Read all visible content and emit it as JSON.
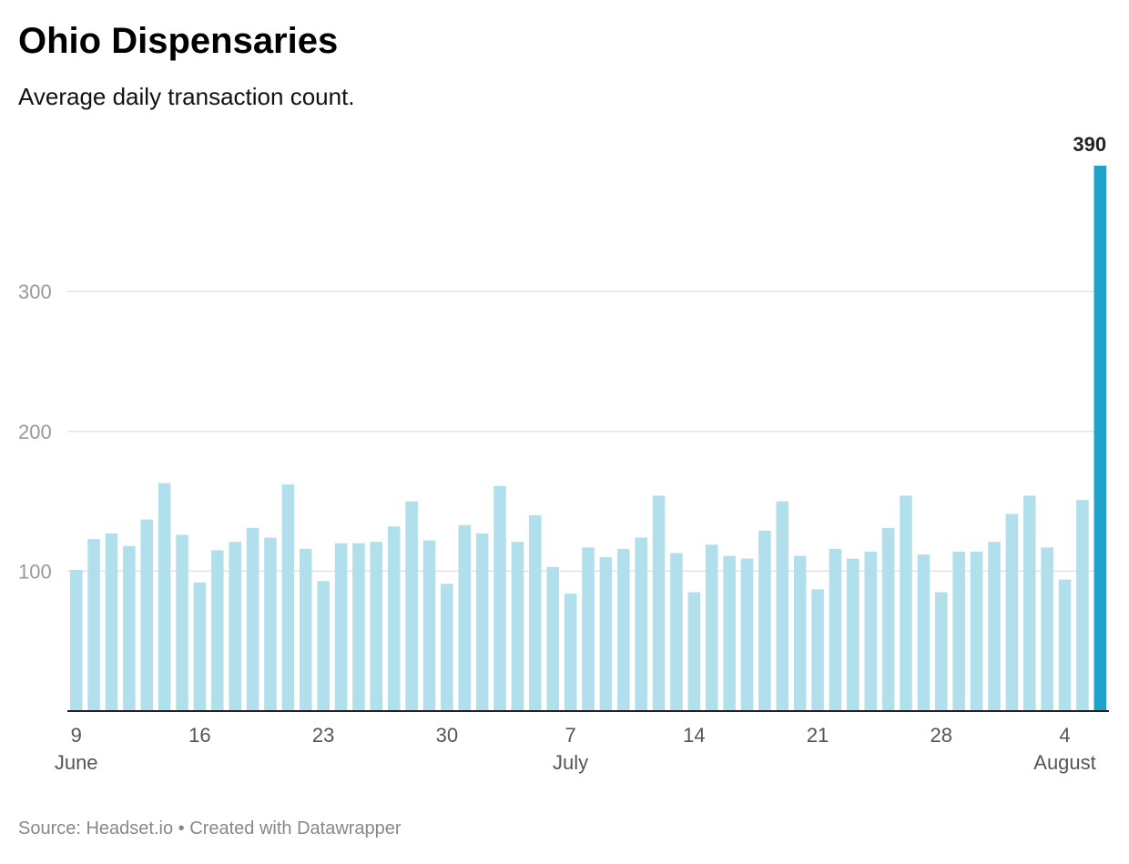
{
  "title": "Ohio Dispensaries",
  "subtitle": "Average daily transaction count.",
  "footer": {
    "source": "Source: Headset.io",
    "separator": "•",
    "credit": "Created with Datawrapper"
  },
  "colors": {
    "bar": "#b2dfec",
    "highlight": "#1fa3cb",
    "grid": "#e3e3e3",
    "axis": "#222222",
    "tick_label": "#999999",
    "x_label": "#555555"
  },
  "chart_data": {
    "type": "bar",
    "x": [
      "2019-06-09",
      "2019-06-10",
      "2019-06-11",
      "2019-06-12",
      "2019-06-13",
      "2019-06-14",
      "2019-06-15",
      "2019-06-16",
      "2019-06-17",
      "2019-06-18",
      "2019-06-19",
      "2019-06-20",
      "2019-06-21",
      "2019-06-22",
      "2019-06-23",
      "2019-06-24",
      "2019-06-25",
      "2019-06-26",
      "2019-06-27",
      "2019-06-28",
      "2019-06-29",
      "2019-06-30",
      "2019-07-01",
      "2019-07-02",
      "2019-07-03",
      "2019-07-04",
      "2019-07-05",
      "2019-07-06",
      "2019-07-07",
      "2019-07-08",
      "2019-07-09",
      "2019-07-10",
      "2019-07-11",
      "2019-07-12",
      "2019-07-13",
      "2019-07-14",
      "2019-07-15",
      "2019-07-16",
      "2019-07-17",
      "2019-07-18",
      "2019-07-19",
      "2019-07-20",
      "2019-07-21",
      "2019-07-22",
      "2019-07-23",
      "2019-07-24",
      "2019-07-25",
      "2019-07-26",
      "2019-07-27",
      "2019-07-28",
      "2019-07-29",
      "2019-07-30",
      "2019-07-31",
      "2019-08-01",
      "2019-08-02",
      "2019-08-03",
      "2019-08-04",
      "2019-08-05",
      "2019-08-06"
    ],
    "values": [
      101,
      123,
      127,
      118,
      137,
      163,
      126,
      92,
      115,
      121,
      131,
      124,
      162,
      116,
      93,
      120,
      120,
      121,
      132,
      150,
      122,
      91,
      133,
      127,
      161,
      121,
      140,
      103,
      84,
      117,
      110,
      116,
      124,
      154,
      113,
      85,
      119,
      111,
      109,
      129,
      150,
      111,
      87,
      116,
      109,
      114,
      131,
      154,
      112,
      85,
      114,
      114,
      121,
      141,
      154,
      117,
      94,
      151,
      390
    ],
    "highlight_index": 58,
    "highlight_label": "390",
    "y_ticks": [
      100,
      200,
      300
    ],
    "ylim": [
      0,
      390
    ],
    "x_ticks": [
      {
        "index": 0,
        "label": "9",
        "sublabel": "June"
      },
      {
        "index": 7,
        "label": "16",
        "sublabel": ""
      },
      {
        "index": 14,
        "label": "23",
        "sublabel": ""
      },
      {
        "index": 21,
        "label": "30",
        "sublabel": ""
      },
      {
        "index": 28,
        "label": "7",
        "sublabel": "July"
      },
      {
        "index": 35,
        "label": "14",
        "sublabel": ""
      },
      {
        "index": 42,
        "label": "21",
        "sublabel": ""
      },
      {
        "index": 49,
        "label": "28",
        "sublabel": ""
      },
      {
        "index": 56,
        "label": "4",
        "sublabel": "August"
      }
    ],
    "grid": true
  }
}
